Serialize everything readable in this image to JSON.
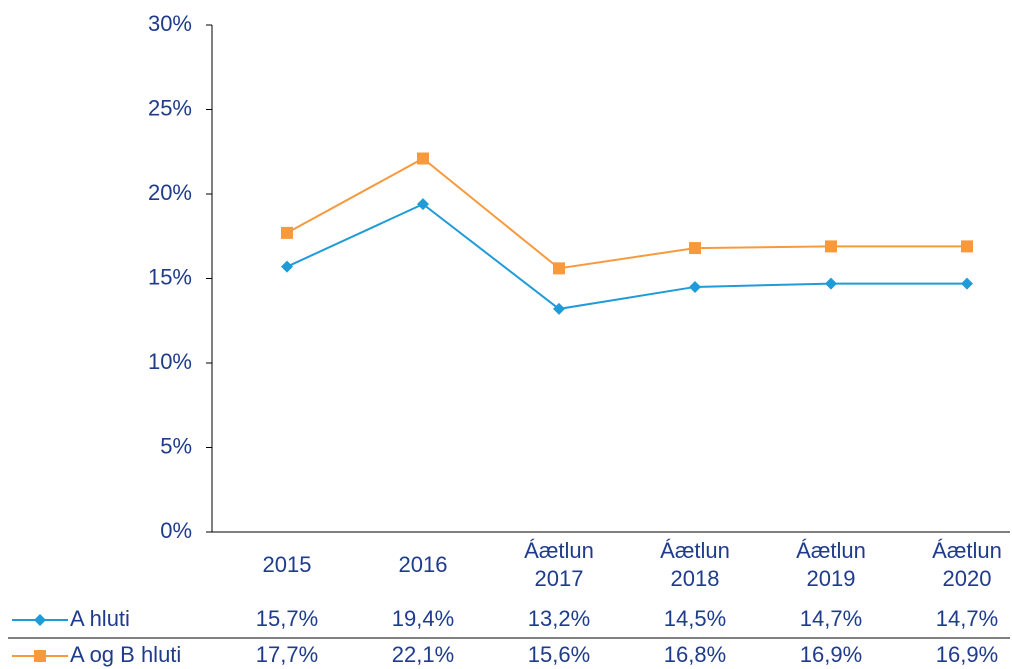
{
  "chart_data": {
    "type": "line",
    "categories": [
      "2015",
      "2016",
      "Áætlun 2017",
      "Áætlun 2018",
      "Áætlun 2019",
      "Áætlun 2020"
    ],
    "series": [
      {
        "name": "A hluti",
        "color": "#1f9bd7",
        "marker": "diamond",
        "values": [
          15.7,
          19.4,
          13.2,
          14.5,
          14.7,
          14.7
        ],
        "value_labels": [
          "15,7%",
          "19,4%",
          "13,2%",
          "14,5%",
          "14,7%",
          "14,7%"
        ]
      },
      {
        "name": "A og B hluti",
        "color": "#f79a3e",
        "marker": "square",
        "values": [
          17.7,
          22.1,
          15.6,
          16.8,
          16.9,
          16.9
        ],
        "value_labels": [
          "17,7%",
          "22,1%",
          "15,6%",
          "16,8%",
          "16,9%",
          "16,9%"
        ]
      }
    ],
    "ylim": [
      0,
      30
    ],
    "yticks": [
      {
        "value": 0,
        "label": "0%"
      },
      {
        "value": 5,
        "label": "5%"
      },
      {
        "value": 10,
        "label": "10%"
      },
      {
        "value": 15,
        "label": "15%"
      },
      {
        "value": 20,
        "label": "20%"
      },
      {
        "value": 25,
        "label": "25%"
      },
      {
        "value": 30,
        "label": "30%"
      }
    ],
    "grid": false
  }
}
